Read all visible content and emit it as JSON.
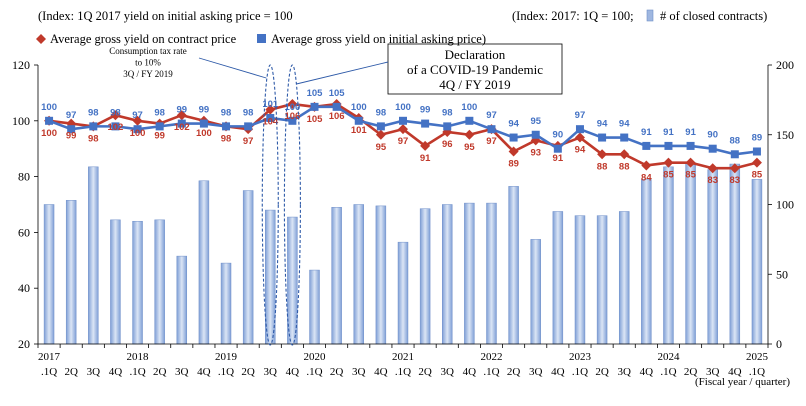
{
  "chart_data": {
    "type": "bar+line",
    "header": {
      "left_title": "(Index: 1Q 2017 yield on initial asking price = 100",
      "right_title": "(Index: 2017: 1Q = 100;",
      "legend_bar": "# of closed contracts)",
      "legend_red": "Average gross yield on contract price",
      "legend_blue": "Average gross yield on initial asking price)"
    },
    "x_unit_label": "(Fiscal year / quarter)",
    "years": [
      "2017",
      "2018",
      "2019",
      "2020",
      "2021",
      "2022",
      "2023",
      "2024",
      "2025"
    ],
    "quarters": [
      ".1Q",
      "2Q",
      "3Q",
      "4Q",
      ".1Q",
      "2Q",
      "3Q",
      "4Q",
      ".1Q",
      "2Q",
      "3Q",
      "4Q",
      ".1Q",
      "2Q",
      "3Q",
      "4Q",
      ".1Q",
      "2Q",
      "3Q",
      "4Q",
      ".1Q",
      "2Q",
      "3Q",
      "4Q",
      ".1Q",
      "2Q",
      "3Q",
      "4Q",
      ".1Q",
      "2Q",
      "3Q",
      "4Q",
      ".1Q"
    ],
    "y_left": {
      "range": [
        20,
        120
      ],
      "ticks": [
        "20",
        "40",
        "60",
        "80",
        "100",
        "120"
      ]
    },
    "y_right": {
      "range": [
        0,
        200
      ],
      "ticks": [
        "0",
        "50",
        "100",
        "150",
        "200"
      ]
    },
    "series": [
      {
        "name": "# of closed contracts",
        "axis": "right",
        "type": "bar",
        "color": "#9fb7e0",
        "values": [
          100,
          103,
          127,
          89,
          88,
          89,
          63,
          117,
          58,
          110,
          96,
          91,
          53,
          98,
          100,
          99,
          73,
          97,
          100,
          101,
          101,
          113,
          75,
          95,
          92,
          92,
          95,
          118,
          127,
          130,
          125,
          129,
          118
        ]
      },
      {
        "name": "Average gross yield on contract price",
        "axis": "left",
        "type": "line",
        "color": "#c0392b",
        "marker": "diamond",
        "values": [
          100,
          99,
          98,
          102,
          100,
          99,
          102,
          100,
          98,
          97,
          104,
          106,
          105,
          106,
          101,
          95,
          97,
          91,
          96,
          95,
          97,
          89,
          93,
          91,
          94,
          88,
          88,
          84,
          85,
          85,
          83,
          83,
          85
        ],
        "labels": [
          "100",
          "99",
          "98",
          "102",
          "100",
          "99",
          "102",
          "100",
          "98",
          "97",
          "104",
          "106",
          "105",
          "106",
          "101",
          "95",
          "97",
          "91",
          "96",
          "95",
          "97",
          "89",
          "93",
          "91",
          "94",
          "88",
          "88",
          "84",
          "85",
          "85",
          "83",
          "83",
          "85"
        ]
      },
      {
        "name": "Average gross yield on initial asking price",
        "axis": "left",
        "type": "line",
        "color": "#4472c4",
        "marker": "square",
        "values": [
          100,
          97,
          98,
          98,
          97,
          98,
          99,
          99,
          98,
          98,
          101,
          100,
          105,
          105,
          100,
          98,
          100,
          99,
          98,
          100,
          97,
          94,
          95,
          90,
          97,
          94,
          94,
          91,
          91,
          91,
          90,
          88,
          89
        ],
        "labels": [
          "100",
          "97",
          "98",
          "98",
          "97",
          "98",
          "99",
          "99",
          "98",
          "98",
          "101",
          "100",
          "105",
          "105",
          "100",
          "98",
          "100",
          "99",
          "98",
          "100",
          "97",
          "94",
          "95",
          "90",
          "97",
          "94",
          "94",
          "91",
          "91",
          "91",
          "90",
          "88",
          "89"
        ]
      }
    ],
    "annotations": [
      {
        "lines": [
          "Consumption tax rate",
          "to 10%",
          "3Q / FY 2019"
        ],
        "quarter_index": 10
      },
      {
        "lines": [
          "Declaration",
          "of a COVID-19 Pandemic",
          "4Q / FY 2019"
        ],
        "quarter_index": 11
      }
    ]
  }
}
